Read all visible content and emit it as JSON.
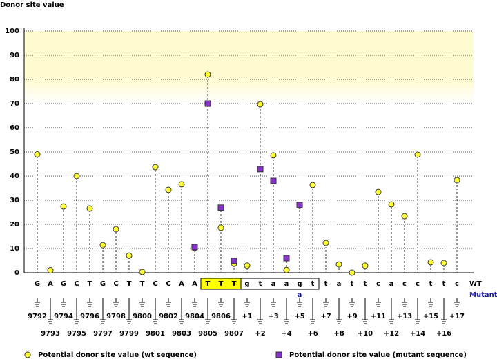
{
  "chart_data": {
    "type": "lollipop",
    "y_label": "Donor site value",
    "categories": [
      "G",
      "A",
      "G",
      "C",
      "T",
      "G",
      "C",
      "T",
      "T",
      "C",
      "C",
      "A",
      "A",
      "T",
      "T",
      "T",
      "g",
      "t",
      "a",
      "a",
      "g",
      "t",
      "t",
      "a",
      "t",
      "t",
      "c",
      "a",
      "c",
      "c",
      "t",
      "t",
      "c"
    ],
    "mutant_sequence": [
      null,
      null,
      null,
      null,
      null,
      null,
      null,
      null,
      null,
      null,
      null,
      null,
      null,
      null,
      null,
      null,
      null,
      null,
      null,
      null,
      "a",
      null,
      null,
      null,
      null,
      null,
      null,
      null,
      null,
      null,
      null,
      null,
      null
    ],
    "positions": [
      "9792",
      "9793",
      "9794",
      "9795",
      "9796",
      "9797",
      "9798",
      "9799",
      "9800",
      "9801",
      "9802",
      "9803",
      "9804",
      "9805",
      "9806",
      "9807",
      "+1",
      "+2",
      "+3",
      "+4",
      "+5",
      "+6",
      "+7",
      "+8",
      "+9",
      "+10",
      "+11",
      "+12",
      "+13",
      "+14",
      "+15",
      "+16",
      "+17"
    ],
    "row_labels": [
      "WT",
      "Mutant"
    ],
    "series": [
      {
        "name": "Potential donor site value (wt sequence)",
        "color": "#ffff33",
        "marker": "circle",
        "values": [
          49,
          1,
          27.4,
          40,
          26.6,
          11.4,
          18,
          7.1,
          0.3,
          43.7,
          34.3,
          36.6,
          10.3,
          82,
          18.6,
          3.7,
          2.9,
          69.7,
          48.6,
          1.1,
          27.7,
          36.3,
          12.3,
          3.4,
          0,
          2.9,
          33.4,
          28.3,
          23.4,
          48.9,
          4.3,
          4,
          38.3
        ]
      },
      {
        "name": "Potential donor site value (mutant sequence)",
        "color": "#8833cc",
        "marker": "square",
        "values": [
          null,
          null,
          null,
          null,
          null,
          null,
          null,
          null,
          null,
          null,
          null,
          null,
          10.6,
          70,
          26.9,
          4.9,
          null,
          42.9,
          38,
          6,
          28,
          null,
          null,
          null,
          null,
          null,
          null,
          null,
          null,
          null,
          null,
          null,
          null
        ]
      }
    ],
    "ylim": [
      0,
      100
    ],
    "yticks": [
      0,
      10,
      20,
      30,
      40,
      50,
      60,
      70,
      80,
      90,
      100
    ],
    "shaded_band": [
      80,
      100
    ],
    "grid": true
  }
}
